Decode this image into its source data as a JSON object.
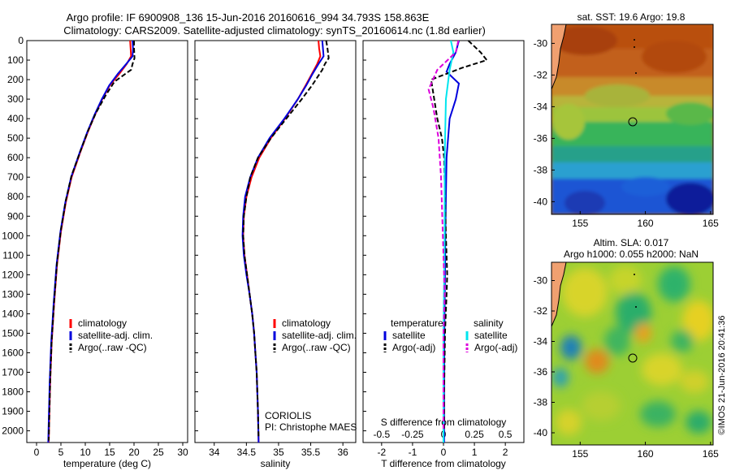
{
  "header": {
    "line1": "Argo profile: IF 6900908_136 15-Jun-2016 20160616_994 34.793S 158.863E",
    "line2": "Climatology: CARS2009. Satellite-adjusted climatology: synTS_20160614.nc (1.8d earlier)"
  },
  "colors": {
    "climatology": "#ff0000",
    "satellite": "#0000dd",
    "argo": "#000000",
    "satellite_salinity": "#00e5ee",
    "argo_salinity_adj": "#dd00dd"
  },
  "footer": {
    "coriolis": "CORIOLIS",
    "pi": "PI: Christophe MAES",
    "imos": "©IMOS 21-Jun-2016 20:41:36"
  },
  "maps": {
    "sst_title": "sat. SST: 19.6 Argo: 19.8",
    "sla_title1": "Altim. SLA: 0.017",
    "sla_title2": "Argo h1000: 0.055 h2000: NaN",
    "lat_ticks": [
      -30,
      -32,
      -34,
      -36,
      -38,
      -40
    ],
    "lon_ticks": [
      155,
      160,
      165
    ],
    "lon_range": [
      152.8,
      165.2
    ],
    "lat_range": [
      -28.8,
      -40.8
    ],
    "marker": {
      "lon": 158.86,
      "lat": -34.79
    },
    "sst_color_note": "orange north to blue south",
    "sla_color_note": "green field with yellow/orange highs and blue lows"
  },
  "chart_data": [
    {
      "type": "line",
      "name": "temperature",
      "xlabel": "temperature (deg C)",
      "ylabel": "",
      "xlim": [
        -2,
        31
      ],
      "ylim": [
        2060,
        0
      ],
      "x_ticks": [
        0,
        5,
        10,
        15,
        20,
        25,
        30
      ],
      "y_ticks": [
        0,
        100,
        200,
        300,
        400,
        500,
        600,
        700,
        800,
        900,
        1000,
        1100,
        1200,
        1300,
        1400,
        1500,
        1600,
        1700,
        1800,
        1900,
        2000
      ],
      "legend": [
        "climatology",
        "satellite-adj. clim.",
        "Argo(..raw -QC)"
      ],
      "legend_position": "lower-center",
      "series": [
        {
          "name": "climatology",
          "color": "climatology",
          "points": [
            [
              19.2,
              0
            ],
            [
              19.3,
              40
            ],
            [
              19.4,
              80
            ],
            [
              18.5,
              120
            ],
            [
              17,
              170
            ],
            [
              15,
              230
            ],
            [
              13.5,
              300
            ],
            [
              12,
              380
            ],
            [
              10.5,
              470
            ],
            [
              9,
              570
            ],
            [
              7.2,
              700
            ],
            [
              6,
              830
            ],
            [
              5,
              980
            ],
            [
              4.2,
              1150
            ],
            [
              3.6,
              1350
            ],
            [
              3.1,
              1550
            ],
            [
              2.8,
              1750
            ],
            [
              2.6,
              1950
            ],
            [
              2.5,
              2060
            ]
          ]
        },
        {
          "name": "satellite-adj. clim.",
          "color": "satellite",
          "points": [
            [
              19.7,
              0
            ],
            [
              19.8,
              40
            ],
            [
              19.7,
              80
            ],
            [
              18.4,
              120
            ],
            [
              16.7,
              170
            ],
            [
              14.9,
              230
            ],
            [
              13.4,
              300
            ],
            [
              11.9,
              380
            ],
            [
              10.4,
              470
            ],
            [
              8.9,
              570
            ],
            [
              7.1,
              700
            ],
            [
              5.9,
              830
            ],
            [
              4.9,
              980
            ],
            [
              4.1,
              1150
            ],
            [
              3.5,
              1350
            ],
            [
              3.0,
              1550
            ],
            [
              2.7,
              1750
            ],
            [
              2.5,
              1950
            ],
            [
              2.4,
              2060
            ]
          ]
        },
        {
          "name": "Argo(..raw -QC)",
          "color": "argo",
          "points": [
            [
              20,
              0
            ],
            [
              20,
              40
            ],
            [
              20.1,
              90
            ],
            [
              19.7,
              120
            ],
            [
              19.4,
              150
            ],
            [
              16,
              210
            ],
            [
              14.2,
              280
            ],
            [
              12.2,
              370
            ],
            [
              10.6,
              460
            ],
            [
              9.1,
              560
            ],
            [
              7.2,
              690
            ],
            [
              6.0,
              820
            ],
            [
              5.0,
              970
            ],
            [
              4.2,
              1140
            ],
            [
              3.6,
              1340
            ],
            [
              3.1,
              1540
            ],
            [
              2.8,
              1740
            ],
            [
              2.6,
              1940
            ],
            [
              2.5,
              2050
            ]
          ]
        }
      ]
    },
    {
      "type": "line",
      "name": "salinity",
      "xlabel": "salinity",
      "ylabel": "",
      "xlim": [
        33.7,
        36.2
      ],
      "ylim": [
        2060,
        0
      ],
      "x_ticks": [
        34,
        34.5,
        35,
        35.5,
        36
      ],
      "legend": [
        "climatology",
        "satellite-adj. clim.",
        "Argo(..raw -QC)"
      ],
      "legend_position": "lower-center",
      "series": [
        {
          "name": "climatology",
          "color": "climatology",
          "points": [
            [
              35.62,
              0
            ],
            [
              35.63,
              40
            ],
            [
              35.65,
              80
            ],
            [
              35.6,
              120
            ],
            [
              35.52,
              170
            ],
            [
              35.42,
              230
            ],
            [
              35.3,
              300
            ],
            [
              35.1,
              400
            ],
            [
              34.88,
              500
            ],
            [
              34.7,
              600
            ],
            [
              34.58,
              700
            ],
            [
              34.5,
              800
            ],
            [
              34.46,
              900
            ],
            [
              34.45,
              1000
            ],
            [
              34.47,
              1100
            ],
            [
              34.51,
              1200
            ],
            [
              34.55,
              1300
            ],
            [
              34.59,
              1400
            ],
            [
              34.62,
              1500
            ],
            [
              34.64,
              1600
            ],
            [
              34.66,
              1700
            ],
            [
              34.67,
              1800
            ],
            [
              34.68,
              1900
            ],
            [
              34.69,
              2060
            ]
          ]
        },
        {
          "name": "satellite-adj. clim.",
          "color": "satellite",
          "points": [
            [
              35.68,
              0
            ],
            [
              35.69,
              40
            ],
            [
              35.7,
              80
            ],
            [
              35.62,
              120
            ],
            [
              35.53,
              170
            ],
            [
              35.43,
              230
            ],
            [
              35.3,
              300
            ],
            [
              35.09,
              400
            ],
            [
              34.86,
              500
            ],
            [
              34.68,
              600
            ],
            [
              34.56,
              700
            ],
            [
              34.48,
              800
            ],
            [
              34.45,
              900
            ],
            [
              34.44,
              1000
            ],
            [
              34.46,
              1100
            ],
            [
              34.5,
              1200
            ],
            [
              34.55,
              1300
            ],
            [
              34.59,
              1400
            ],
            [
              34.62,
              1500
            ],
            [
              34.64,
              1600
            ],
            [
              34.66,
              1700
            ],
            [
              34.67,
              1800
            ],
            [
              34.68,
              1900
            ],
            [
              34.69,
              2060
            ]
          ]
        },
        {
          "name": "Argo(..raw -QC)",
          "color": "argo",
          "points": [
            [
              35.74,
              0
            ],
            [
              35.76,
              40
            ],
            [
              35.78,
              90
            ],
            [
              35.72,
              120
            ],
            [
              35.68,
              150
            ],
            [
              35.52,
              230
            ],
            [
              35.36,
              300
            ],
            [
              35.12,
              400
            ],
            [
              34.88,
              500
            ],
            [
              34.68,
              600
            ],
            [
              34.56,
              700
            ],
            [
              34.5,
              800
            ],
            [
              34.46,
              900
            ],
            [
              34.45,
              1000
            ],
            [
              34.47,
              1100
            ],
            [
              34.51,
              1200
            ],
            [
              34.55,
              1300
            ],
            [
              34.59,
              1400
            ],
            [
              34.62,
              1500
            ],
            [
              34.64,
              1600
            ],
            [
              34.66,
              1700
            ],
            [
              34.67,
              1800
            ],
            [
              34.68,
              1900
            ],
            [
              34.69,
              2040
            ]
          ]
        }
      ]
    },
    {
      "type": "line",
      "name": "difference",
      "xlabel": "T difference from climatology",
      "xlabel2": "S difference from climatology",
      "ylabel": "",
      "xlim": [
        -2.6,
        2.6
      ],
      "ylim": [
        2060,
        0
      ],
      "t_ticks": [
        -2,
        -1,
        0,
        1,
        2
      ],
      "s_ticks": [
        "-0.5",
        "-0.25",
        "0",
        "0.25",
        "0.5"
      ],
      "legend_left_title": "temperature",
      "legend_right_title": "salinity",
      "legend": [
        "satellite",
        "Argo(-adj)",
        "satellite",
        "Argo(-adj)"
      ],
      "legend_position": "lower-center",
      "series": [
        {
          "name": "satellite",
          "color": "satellite",
          "quantity": "temperature",
          "points": [
            [
              0.5,
              0
            ],
            [
              0.4,
              60
            ],
            [
              0.2,
              120
            ],
            [
              0.1,
              160
            ],
            [
              0.5,
              220
            ],
            [
              0.4,
              300
            ],
            [
              0.2,
              400
            ],
            [
              0.15,
              500
            ],
            [
              0.1,
              600
            ],
            [
              0.08,
              800
            ],
            [
              0.06,
              1000
            ],
            [
              0.05,
              1200
            ],
            [
              0.03,
              1500
            ],
            [
              0.02,
              1800
            ],
            [
              0.02,
              2060
            ]
          ]
        },
        {
          "name": "Argo(-adj)",
          "color": "argo",
          "quantity": "temperature",
          "points": [
            [
              0.8,
              0
            ],
            [
              1.2,
              60
            ],
            [
              1.4,
              100
            ],
            [
              0.6,
              140
            ],
            [
              -0.4,
              200
            ],
            [
              -0.3,
              300
            ],
            [
              -0.2,
              400
            ],
            [
              -0.05,
              500
            ],
            [
              0.02,
              600
            ],
            [
              0.05,
              800
            ],
            [
              0.08,
              1000
            ],
            [
              0.12,
              1200
            ],
            [
              0.1,
              1300
            ],
            [
              0.05,
              1500
            ],
            [
              0.02,
              1800
            ],
            [
              0.02,
              2000
            ]
          ]
        },
        {
          "name": "satellite",
          "color": "satellite_salinity",
          "quantity": "salinity",
          "points": [
            [
              0.06,
              0
            ],
            [
              0.08,
              60
            ],
            [
              0.05,
              150
            ],
            [
              0.02,
              300
            ],
            [
              0.01,
              600
            ],
            [
              0.01,
              1000
            ],
            [
              0,
              1500
            ],
            [
              0,
              2060
            ]
          ]
        },
        {
          "name": "Argo(-adj)",
          "color": "argo_salinity_adj",
          "quantity": "salinity",
          "points": [
            [
              0.12,
              0
            ],
            [
              0.1,
              60
            ],
            [
              -0.05,
              150
            ],
            [
              -0.12,
              250
            ],
            [
              -0.08,
              350
            ],
            [
              -0.04,
              500
            ],
            [
              -0.02,
              700
            ],
            [
              -0.01,
              900
            ],
            [
              0,
              1100
            ],
            [
              0.01,
              1300
            ],
            [
              0,
              1500
            ],
            [
              0,
              2000
            ]
          ]
        }
      ]
    }
  ]
}
